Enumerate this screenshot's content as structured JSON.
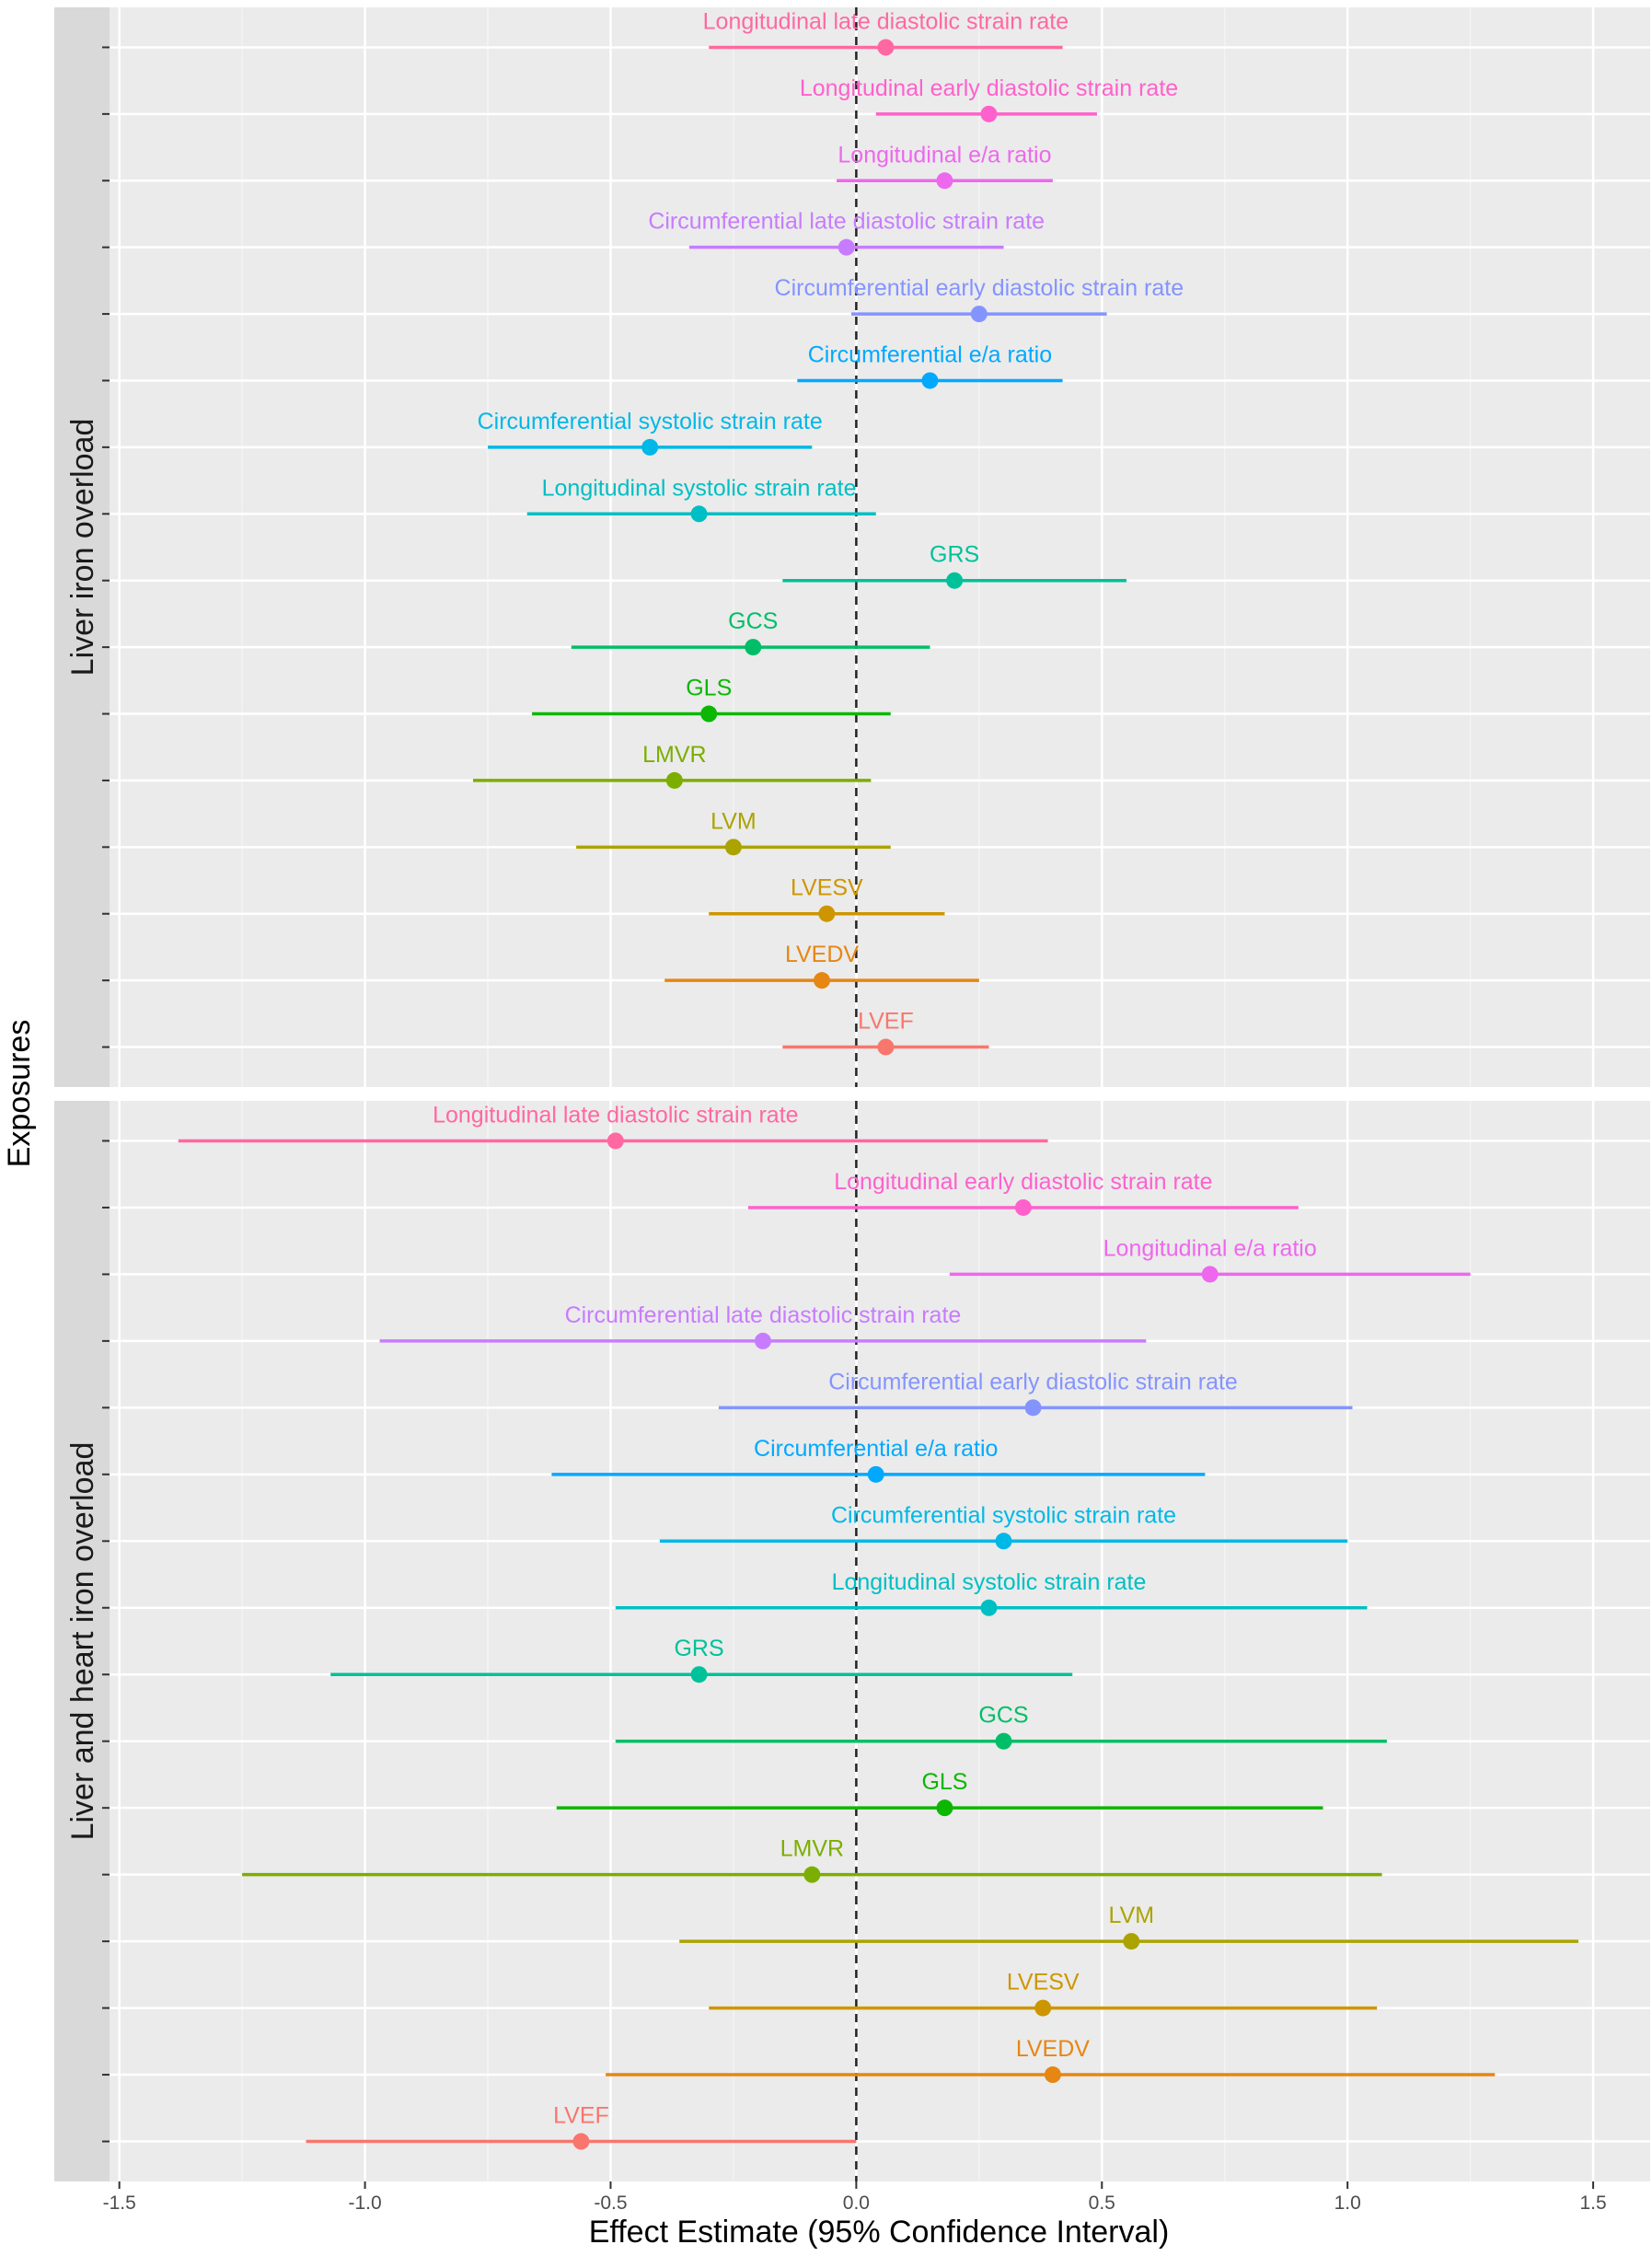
{
  "chart_data": {
    "type": "forest",
    "xlabel": "Effect Estimate (95% Confidence Interval)",
    "ylabel": "Exposures",
    "xlim": [
      -1.52,
      1.616
    ],
    "xticks": [
      -1.5,
      -1.0,
      -0.5,
      0.0,
      0.5,
      1.0,
      1.5
    ],
    "xtick_labels": [
      "-1.5",
      "-1.0",
      "-0.5",
      "0.0",
      "0.5",
      "1.0",
      "1.5"
    ],
    "reference_line": 0,
    "grid": true,
    "legend": "none",
    "colors": {
      "LVEF": "#F8766D",
      "LVEDV": "#E68613",
      "LVESV": "#CD9600",
      "LVM": "#ABA300",
      "LMVR": "#7CAE00",
      "GLS": "#0CB702",
      "GCS": "#00BE67",
      "GRS": "#00C19A",
      "Longitudinal systolic strain rate": "#00BFC4",
      "Circumferential systolic strain rate": "#00B8E7",
      "Circumferential e/a ratio": "#00A9FF",
      "Circumferential early diastolic strain rate": "#8494FF",
      "Circumferential late diastolic strain rate": "#C77CFF",
      "Longitudinal e/a ratio": "#ED68ED",
      "Longitudinal early diastolic strain rate": "#FF61CC",
      "Longitudinal late diastolic strain rate": "#FF68A1"
    },
    "panels": [
      {
        "name": "Liver iron overload",
        "rows": [
          {
            "label": "Longitudinal late diastolic strain rate",
            "est": 0.06,
            "lo": -0.3,
            "hi": 0.42
          },
          {
            "label": "Longitudinal early diastolic strain rate",
            "est": 0.27,
            "lo": 0.04,
            "hi": 0.49
          },
          {
            "label": "Longitudinal e/a ratio",
            "est": 0.18,
            "lo": -0.04,
            "hi": 0.4
          },
          {
            "label": "Circumferential late diastolic strain rate",
            "est": -0.02,
            "lo": -0.34,
            "hi": 0.3
          },
          {
            "label": "Circumferential early diastolic strain rate",
            "est": 0.25,
            "lo": -0.01,
            "hi": 0.51
          },
          {
            "label": "Circumferential e/a ratio",
            "est": 0.15,
            "lo": -0.12,
            "hi": 0.42
          },
          {
            "label": "Circumferential systolic strain rate",
            "est": -0.42,
            "lo": -0.75,
            "hi": -0.09
          },
          {
            "label": "Longitudinal systolic strain rate",
            "est": -0.32,
            "lo": -0.67,
            "hi": 0.04
          },
          {
            "label": "GRS",
            "est": 0.2,
            "lo": -0.15,
            "hi": 0.55
          },
          {
            "label": "GCS",
            "est": -0.21,
            "lo": -0.58,
            "hi": 0.15
          },
          {
            "label": "GLS",
            "est": -0.3,
            "lo": -0.66,
            "hi": 0.07
          },
          {
            "label": "LMVR",
            "est": -0.37,
            "lo": -0.78,
            "hi": 0.03
          },
          {
            "label": "LVM",
            "est": -0.25,
            "lo": -0.57,
            "hi": 0.07
          },
          {
            "label": "LVESV",
            "est": -0.06,
            "lo": -0.3,
            "hi": 0.18
          },
          {
            "label": "LVEDV",
            "est": -0.07,
            "lo": -0.39,
            "hi": 0.25
          },
          {
            "label": "LVEF",
            "est": 0.06,
            "lo": -0.15,
            "hi": 0.27
          }
        ]
      },
      {
        "name": "Liver and heart iron overload",
        "rows": [
          {
            "label": "Longitudinal late diastolic strain rate",
            "est": -0.49,
            "lo": -1.38,
            "hi": 0.39
          },
          {
            "label": "Longitudinal early diastolic strain rate",
            "est": 0.34,
            "lo": -0.22,
            "hi": 0.9
          },
          {
            "label": "Longitudinal e/a ratio",
            "est": 0.72,
            "lo": 0.19,
            "hi": 1.25
          },
          {
            "label": "Circumferential late diastolic strain rate",
            "est": -0.19,
            "lo": -0.97,
            "hi": 0.59
          },
          {
            "label": "Circumferential early diastolic strain rate",
            "est": 0.36,
            "lo": -0.28,
            "hi": 1.01
          },
          {
            "label": "Circumferential e/a ratio",
            "est": 0.04,
            "lo": -0.62,
            "hi": 0.71
          },
          {
            "label": "Circumferential systolic strain rate",
            "est": 0.3,
            "lo": -0.4,
            "hi": 1.0
          },
          {
            "label": "Longitudinal systolic strain rate",
            "est": 0.27,
            "lo": -0.49,
            "hi": 1.04
          },
          {
            "label": "GRS",
            "est": -0.32,
            "lo": -1.07,
            "hi": 0.44
          },
          {
            "label": "GCS",
            "est": 0.3,
            "lo": -0.49,
            "hi": 1.08
          },
          {
            "label": "GLS",
            "est": 0.18,
            "lo": -0.61,
            "hi": 0.95
          },
          {
            "label": "LMVR",
            "est": -0.09,
            "lo": -1.25,
            "hi": 1.07
          },
          {
            "label": "LVM",
            "est": 0.56,
            "lo": -0.36,
            "hi": 1.47
          },
          {
            "label": "LVESV",
            "est": 0.38,
            "lo": -0.3,
            "hi": 1.06
          },
          {
            "label": "LVEDV",
            "est": 0.4,
            "lo": -0.51,
            "hi": 1.3
          },
          {
            "label": "LVEF",
            "est": -0.56,
            "lo": -1.12,
            "hi": 0.0
          }
        ]
      }
    ]
  }
}
